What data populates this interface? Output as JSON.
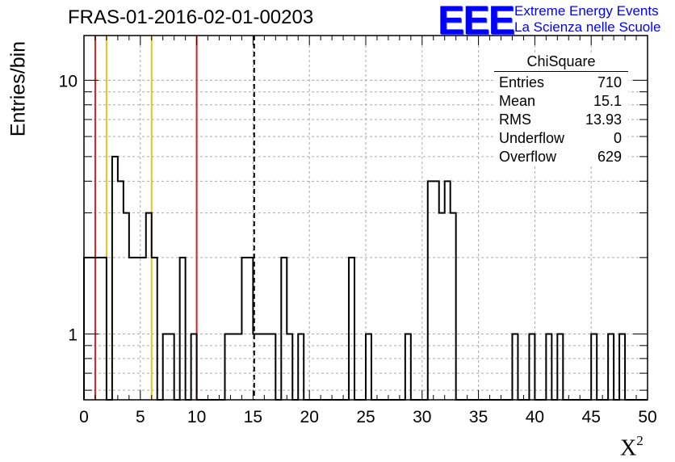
{
  "title": "FRAS-01-2016-02-01-00203",
  "logo": {
    "mark": "EEE",
    "line1": "Extreme Energy Events",
    "line2": "La Scienza nelle Scuole",
    "color": "#0000ff"
  },
  "stats": {
    "name": "ChiSquare",
    "rows": [
      {
        "label": "Entries",
        "value": "710"
      },
      {
        "label": "Mean",
        "value": "15.1"
      },
      {
        "label": "RMS",
        "value": "13.93"
      },
      {
        "label": "Underflow",
        "value": "0"
      },
      {
        "label": "Overflow",
        "value": "629"
      }
    ]
  },
  "chart_data": {
    "type": "histogram",
    "title": "FRAS-01-2016-02-01-00203",
    "xlabel": "X",
    "xlabel_superscript": "2",
    "ylabel": "Entries/bin",
    "xlim": [
      0,
      50
    ],
    "ylim": [
      0.55,
      15
    ],
    "y_scale": "log",
    "grid": true,
    "x_ticks": [
      0,
      5,
      10,
      15,
      20,
      25,
      30,
      35,
      40,
      45,
      50
    ],
    "x_tick_labels": [
      "0",
      "5",
      "10",
      "15",
      "20",
      "25",
      "30",
      "35",
      "40",
      "45",
      "50"
    ],
    "y_tick_labels": [
      {
        "value": 1,
        "label": "1"
      },
      {
        "value": 10,
        "label": "10"
      }
    ],
    "bin_width": 0.5,
    "bins": [
      {
        "x": 0.0,
        "y": 2
      },
      {
        "x": 0.5,
        "y": 2
      },
      {
        "x": 1.0,
        "y": 2
      },
      {
        "x": 1.5,
        "y": 2
      },
      {
        "x": 2.0,
        "y": 0
      },
      {
        "x": 2.5,
        "y": 5
      },
      {
        "x": 3.0,
        "y": 4
      },
      {
        "x": 3.5,
        "y": 3
      },
      {
        "x": 4.0,
        "y": 2
      },
      {
        "x": 4.5,
        "y": 2
      },
      {
        "x": 5.0,
        "y": 2
      },
      {
        "x": 5.5,
        "y": 3
      },
      {
        "x": 6.0,
        "y": 2
      },
      {
        "x": 6.5,
        "y": 0
      },
      {
        "x": 7.0,
        "y": 1
      },
      {
        "x": 7.5,
        "y": 1
      },
      {
        "x": 8.0,
        "y": 0
      },
      {
        "x": 8.5,
        "y": 2
      },
      {
        "x": 9.0,
        "y": 0
      },
      {
        "x": 9.5,
        "y": 1
      },
      {
        "x": 12.5,
        "y": 1
      },
      {
        "x": 13.0,
        "y": 1
      },
      {
        "x": 13.5,
        "y": 1
      },
      {
        "x": 14.0,
        "y": 2
      },
      {
        "x": 14.5,
        "y": 2
      },
      {
        "x": 15.0,
        "y": 1
      },
      {
        "x": 15.5,
        "y": 1
      },
      {
        "x": 16.0,
        "y": 1
      },
      {
        "x": 16.5,
        "y": 1
      },
      {
        "x": 17.0,
        "y": 0
      },
      {
        "x": 17.5,
        "y": 2
      },
      {
        "x": 18.0,
        "y": 1
      },
      {
        "x": 19.0,
        "y": 1
      },
      {
        "x": 23.5,
        "y": 2
      },
      {
        "x": 25.0,
        "y": 1
      },
      {
        "x": 28.5,
        "y": 1
      },
      {
        "x": 30.5,
        "y": 4
      },
      {
        "x": 31.0,
        "y": 4
      },
      {
        "x": 31.5,
        "y": 3
      },
      {
        "x": 32.0,
        "y": 4
      },
      {
        "x": 32.5,
        "y": 3
      },
      {
        "x": 38.0,
        "y": 1
      },
      {
        "x": 39.5,
        "y": 1
      },
      {
        "x": 41.0,
        "y": 1
      },
      {
        "x": 42.0,
        "y": 1
      },
      {
        "x": 45.0,
        "y": 1
      },
      {
        "x": 46.5,
        "y": 1
      },
      {
        "x": 47.5,
        "y": 1
      }
    ],
    "reference_lines": [
      {
        "x": 1,
        "color": "#e02020",
        "style": "solid"
      },
      {
        "x": 2,
        "color": "#f0c020",
        "style": "solid"
      },
      {
        "x": 6,
        "color": "#f0c020",
        "style": "solid"
      },
      {
        "x": 10,
        "color": "#e02020",
        "style": "solid"
      },
      {
        "x": 15.1,
        "color": "#000000",
        "style": "dashed"
      }
    ]
  }
}
